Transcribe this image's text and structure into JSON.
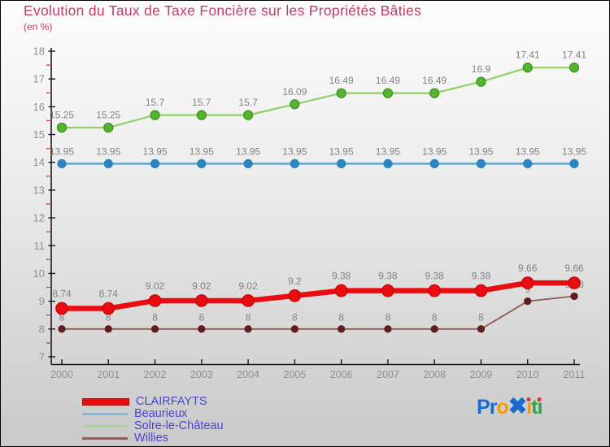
{
  "header": {
    "title": "Evolution du Taux de Taxe Foncière sur les Propriétés Bâties",
    "subtitle": "(en %)"
  },
  "colors": {
    "title_text": "#c23d60",
    "legend_text": "#4a45cf",
    "axis": "#1a1a1a",
    "minor_tick": "#e02f2f",
    "tick_label": "#8f8f8f",
    "point_label": "#838383",
    "background_top": "#fdfdfd",
    "background_bottom": "#c9c9c9"
  },
  "chart_data": {
    "type": "line",
    "title": "Evolution du Taux de Taxe Foncière sur les Propriétés Bâties",
    "subtitle": "(en %)",
    "xlabel": "",
    "ylabel": "",
    "x": [
      2000,
      2001,
      2002,
      2003,
      2004,
      2005,
      2006,
      2007,
      2008,
      2009,
      2010,
      2011
    ],
    "ylim": [
      7,
      18
    ],
    "ytick_step": 1,
    "yminor_step": 0.5,
    "grid": false,
    "legend_position": "bottom-left",
    "render_order": [
      2,
      1,
      3,
      0
    ],
    "series": [
      {
        "name": "CLAIRFAYTS",
        "values": [
          8.74,
          8.74,
          9.02,
          9.02,
          9.02,
          9.2,
          9.38,
          9.38,
          9.38,
          9.38,
          9.66,
          9.66
        ],
        "labels": [
          "8.74",
          "8.74",
          "9.02",
          "9.02",
          "9.02",
          "9.2",
          "9.38",
          "9.38",
          "9.38",
          "9.38",
          "9.66",
          "9.66"
        ],
        "color": "#e90c10",
        "dot_color": "#e90c10",
        "dot_stroke": "#c4070c",
        "width": 6.5,
        "dot_r": 7.2,
        "label_dy": 14
      },
      {
        "name": "Beaurieux",
        "values": [
          13.95,
          13.95,
          13.95,
          13.95,
          13.95,
          13.95,
          13.95,
          13.95,
          13.95,
          13.95,
          13.95,
          13.95
        ],
        "labels": [
          "13.95",
          "13.95",
          "13.95",
          "13.95",
          "13.95",
          "13.95",
          "13.95",
          "13.95",
          "13.95",
          "13.95",
          "13.95",
          "13.95"
        ],
        "color": "#5b9fcb",
        "dot_color": "#2e84bd",
        "dot_stroke": "#2e84bd",
        "width": 2.4,
        "dot_r": 5,
        "label_dy": 11
      },
      {
        "name": "Solre-le-Château",
        "values": [
          15.25,
          15.25,
          15.7,
          15.7,
          15.7,
          16.09,
          16.49,
          16.49,
          16.49,
          16.9,
          17.41,
          17.41
        ],
        "labels": [
          "15.25",
          "15.25",
          "15.7",
          "15.7",
          "15.7",
          "16.09",
          "16.49",
          "16.49",
          "16.49",
          "16.9",
          "17.41",
          "17.41"
        ],
        "color": "#8ed164",
        "dot_color": "#54b42f",
        "dot_stroke": "#3f941d",
        "width": 2.2,
        "dot_r": 5.5,
        "label_dy": 11.5
      },
      {
        "name": "Willies",
        "values": [
          8,
          8,
          8,
          8,
          8,
          8,
          8,
          8,
          8,
          8,
          9,
          9.18
        ],
        "labels": [
          "8",
          "8",
          "8",
          "8",
          "8",
          "8",
          "8",
          "8",
          "8",
          "8",
          "9",
          "9.18"
        ],
        "color": "#8d5a5a",
        "dot_color": "#5f1f1f",
        "dot_stroke": "#5f1f1f",
        "width": 1.8,
        "dot_r": 4,
        "label_dy": 10.5
      }
    ]
  },
  "legend": {
    "items": [
      {
        "label": "CLAIRFAYTS",
        "color": "#e90c10",
        "border": "#9d0d0d",
        "type": "thick"
      },
      {
        "label": "Beaurieux",
        "color": "#92b7d1",
        "type": "line"
      },
      {
        "label": "Solre-le-Château",
        "color": "#a9d98e",
        "type": "line"
      },
      {
        "label": "Willies",
        "color": "#8a5f5f",
        "type": "line"
      }
    ]
  },
  "logo": {
    "text": "Proxiti",
    "letters": [
      {
        "ch": "P",
        "color": "#1b6ad2"
      },
      {
        "ch": "r",
        "color": "#1b6ad2"
      },
      {
        "ch": "o",
        "color": "#f59b00"
      },
      {
        "ch": "✖",
        "color": "#1b6ad2",
        "xmark": true
      },
      {
        "ch": "ı",
        "color": "#f59b00",
        "dot": "#e23333"
      },
      {
        "ch": "t",
        "color": "#32a345"
      },
      {
        "ch": "ı",
        "color": "#32a345",
        "dot": "#e23333"
      }
    ]
  }
}
